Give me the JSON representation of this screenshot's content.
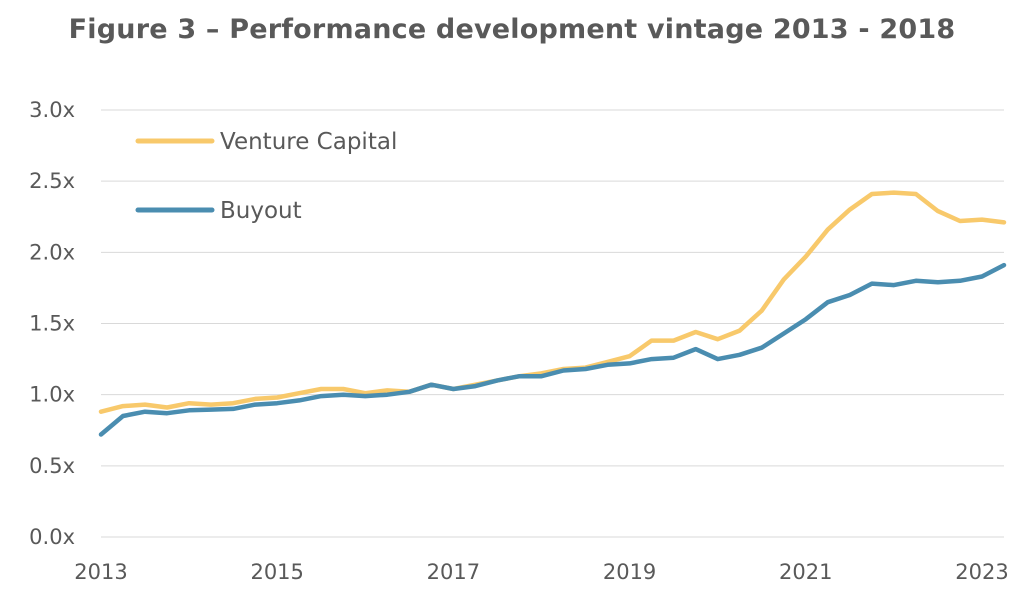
{
  "chart_data": {
    "type": "line",
    "title": "Figure 3 – Performance development vintage 2013 - 2018",
    "xlabel": "",
    "ylabel": "",
    "xlim": [
      2013.0,
      2023.25
    ],
    "ylim": [
      0,
      3.0
    ],
    "x_ticks": [
      2013,
      2015,
      2017,
      2019,
      2021,
      2023
    ],
    "x_tick_labels": [
      "2013",
      "2015",
      "2017",
      "2019",
      "2021",
      "2023"
    ],
    "y_ticks": [
      0,
      0.5,
      1.0,
      1.5,
      2.0,
      2.5,
      3.0
    ],
    "y_tick_labels": [
      "0.0x",
      "0.5x",
      "1.0x",
      "1.5x",
      "2.0x",
      "2.5x",
      "3.0x"
    ],
    "grid": "horizontal",
    "legend_position": "top-left",
    "x": [
      2013.0,
      2013.25,
      2013.5,
      2013.75,
      2014.0,
      2014.25,
      2014.5,
      2014.75,
      2015.0,
      2015.25,
      2015.5,
      2015.75,
      2016.0,
      2016.25,
      2016.5,
      2016.75,
      2017.0,
      2017.25,
      2017.5,
      2017.75,
      2018.0,
      2018.25,
      2018.5,
      2018.75,
      2019.0,
      2019.25,
      2019.5,
      2019.75,
      2020.0,
      2020.25,
      2020.5,
      2020.75,
      2021.0,
      2021.25,
      2021.5,
      2021.75,
      2022.0,
      2022.25,
      2022.5,
      2022.75,
      2023.0,
      2023.25
    ],
    "series": [
      {
        "name": "Venture Capital",
        "color": "#F8C96B",
        "values": [
          0.88,
          0.92,
          0.93,
          0.91,
          0.94,
          0.93,
          0.94,
          0.97,
          0.98,
          1.01,
          1.04,
          1.04,
          1.01,
          1.03,
          1.02,
          1.07,
          1.04,
          1.07,
          1.1,
          1.13,
          1.15,
          1.18,
          1.19,
          1.23,
          1.27,
          1.38,
          1.38,
          1.44,
          1.39,
          1.45,
          1.59,
          1.81,
          1.97,
          2.16,
          2.3,
          2.41,
          2.42,
          2.41,
          2.29,
          2.22,
          2.23,
          2.21
        ]
      },
      {
        "name": "Buyout",
        "color": "#4A8DB0",
        "values": [
          0.72,
          0.85,
          0.88,
          0.87,
          0.89,
          0.895,
          0.9,
          0.93,
          0.94,
          0.96,
          0.99,
          1.0,
          0.99,
          1.0,
          1.02,
          1.07,
          1.04,
          1.06,
          1.1,
          1.13,
          1.13,
          1.17,
          1.18,
          1.21,
          1.22,
          1.25,
          1.26,
          1.32,
          1.25,
          1.28,
          1.33,
          1.43,
          1.53,
          1.65,
          1.7,
          1.78,
          1.77,
          1.8,
          1.79,
          1.8,
          1.83,
          1.91
        ]
      }
    ]
  }
}
